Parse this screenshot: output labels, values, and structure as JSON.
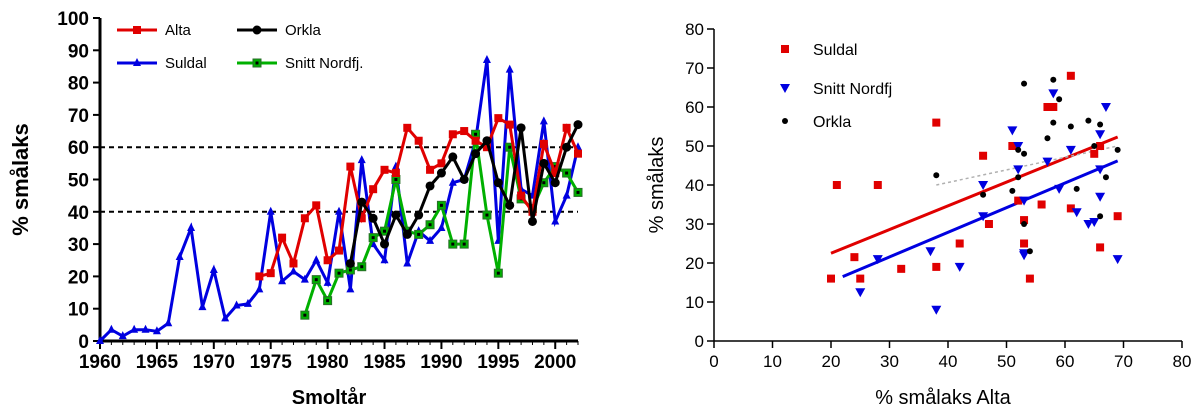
{
  "chart_data": [
    {
      "type": "line",
      "title": "",
      "xlabel": "Smoltår",
      "ylabel": "% smålaks",
      "xlim": [
        1960,
        2002
      ],
      "ylim": [
        0,
        100
      ],
      "xticks": [
        1960,
        1965,
        1970,
        1975,
        1980,
        1985,
        1990,
        1995,
        2000
      ],
      "yticks": [
        0,
        10,
        20,
        30,
        40,
        50,
        60,
        70,
        80,
        90,
        100
      ],
      "reference_lines": [
        40,
        60
      ],
      "legend_position": "top-left",
      "series": [
        {
          "name": "Alta",
          "color": "#e00000",
          "marker": "square",
          "points": [
            [
              1974,
              20
            ],
            [
              1975,
              21
            ],
            [
              1976,
              32
            ],
            [
              1977,
              24
            ],
            [
              1978,
              38
            ],
            [
              1979,
              42
            ],
            [
              1980,
              25
            ],
            [
              1981,
              28
            ],
            [
              1982,
              54
            ],
            [
              1983,
              38
            ],
            [
              1984,
              47
            ],
            [
              1985,
              53
            ],
            [
              1986,
              52
            ],
            [
              1987,
              66
            ],
            [
              1988,
              62
            ],
            [
              1989,
              53
            ],
            [
              1990,
              55
            ],
            [
              1991,
              64
            ],
            [
              1992,
              65
            ],
            [
              1993,
              62
            ],
            [
              1994,
              60
            ],
            [
              1995,
              69
            ],
            [
              1996,
              67
            ],
            [
              1997,
              45
            ],
            [
              1998,
              40
            ],
            [
              1999,
              61
            ],
            [
              2000,
              52
            ],
            [
              2001,
              66
            ],
            [
              2002,
              58
            ]
          ]
        },
        {
          "name": "Orkla",
          "color": "#000000",
          "marker": "circle",
          "points": [
            [
              1982,
              24
            ],
            [
              1983,
              43
            ],
            [
              1984,
              38
            ],
            [
              1985,
              30
            ],
            [
              1986,
              39
            ],
            [
              1987,
              33
            ],
            [
              1988,
              39
            ],
            [
              1989,
              48
            ],
            [
              1990,
              52
            ],
            [
              1991,
              57
            ],
            [
              1992,
              50
            ],
            [
              1993,
              58
            ],
            [
              1994,
              62
            ],
            [
              1995,
              49
            ],
            [
              1996,
              42
            ],
            [
              1997,
              66
            ],
            [
              1998,
              37
            ],
            [
              1999,
              55
            ],
            [
              2000,
              49
            ],
            [
              2001,
              60
            ],
            [
              2002,
              67
            ]
          ]
        },
        {
          "name": "Suldal",
          "color": "#0000e0",
          "marker": "triangle",
          "points": [
            [
              1960,
              0
            ],
            [
              1961,
              3.5
            ],
            [
              1962,
              1.5
            ],
            [
              1963,
              3.5
            ],
            [
              1964,
              3.5
            ],
            [
              1965,
              3
            ],
            [
              1966,
              5.5
            ],
            [
              1967,
              26
            ],
            [
              1968,
              35
            ],
            [
              1969,
              10.5
            ],
            [
              1970,
              22
            ],
            [
              1971,
              7
            ],
            [
              1972,
              11
            ],
            [
              1973,
              11.5
            ],
            [
              1974,
              16
            ],
            [
              1975,
              40
            ],
            [
              1976,
              18.5
            ],
            [
              1977,
              21.5
            ],
            [
              1978,
              19
            ],
            [
              1979,
              25
            ],
            [
              1980,
              18
            ],
            [
              1981,
              40
            ],
            [
              1982,
              16
            ],
            [
              1983,
              56
            ],
            [
              1984,
              30
            ],
            [
              1985,
              25
            ],
            [
              1986,
              54
            ],
            [
              1987,
              24
            ],
            [
              1988,
              34
            ],
            [
              1989,
              31
            ],
            [
              1990,
              35
            ],
            [
              1991,
              49
            ],
            [
              1992,
              50
            ],
            [
              1993,
              62
            ],
            [
              1994,
              87
            ],
            [
              1995,
              31
            ],
            [
              1996,
              84
            ],
            [
              1997,
              47
            ],
            [
              1998,
              45
            ],
            [
              1999,
              68
            ],
            [
              2000,
              37
            ],
            [
              2001,
              45
            ],
            [
              2002,
              60
            ]
          ]
        },
        {
          "name": "Snitt Nordfj.",
          "color": "#00b000",
          "marker": "square-dot",
          "points": [
            [
              1978,
              8
            ],
            [
              1979,
              19
            ],
            [
              1980,
              12.5
            ],
            [
              1981,
              21
            ],
            [
              1982,
              22
            ],
            [
              1983,
              23
            ],
            [
              1984,
              32
            ],
            [
              1985,
              34
            ],
            [
              1986,
              50
            ],
            [
              1987,
              34
            ],
            [
              1988,
              33
            ],
            [
              1989,
              36
            ],
            [
              1990,
              42
            ],
            [
              1991,
              30
            ],
            [
              1992,
              30
            ],
            [
              1993,
              64
            ],
            [
              1994,
              39
            ],
            [
              1995,
              21
            ],
            [
              1996,
              60
            ],
            [
              1997,
              44
            ],
            [
              1998,
              41
            ],
            [
              1999,
              49
            ],
            [
              2000,
              54
            ],
            [
              2001,
              52
            ],
            [
              2002,
              46
            ]
          ]
        }
      ]
    },
    {
      "type": "scatter",
      "title": "",
      "xlabel": "% smålaks Alta",
      "ylabel": "% smålaks",
      "xlim": [
        0,
        80
      ],
      "ylim": [
        0,
        80
      ],
      "xticks": [
        0,
        10,
        20,
        30,
        40,
        50,
        60,
        70,
        80
      ],
      "yticks": [
        0,
        10,
        20,
        30,
        40,
        50,
        60,
        70,
        80
      ],
      "legend_position": "top-left",
      "series": [
        {
          "name": "Suldal",
          "color": "#e00000",
          "marker": "square",
          "points": [
            [
              20,
              16
            ],
            [
              21,
              40
            ],
            [
              24,
              21.5
            ],
            [
              25,
              16
            ],
            [
              28,
              40
            ],
            [
              32,
              18.5
            ],
            [
              38,
              56
            ],
            [
              38,
              19
            ],
            [
              42,
              25
            ],
            [
              46,
              47.5
            ],
            [
              47,
              30
            ],
            [
              51,
              50
            ],
            [
              52,
              36
            ],
            [
              53,
              31
            ],
            [
              53,
              25
            ],
            [
              54,
              16
            ],
            [
              56,
              35
            ],
            [
              57,
              60
            ],
            [
              58,
              60
            ],
            [
              61,
              68
            ],
            [
              61,
              34
            ],
            [
              65,
              48
            ],
            [
              66,
              24
            ],
            [
              66,
              50
            ],
            [
              69,
              32
            ]
          ],
          "regression": [
            [
              20,
              22.5
            ],
            [
              69,
              52.3
            ]
          ]
        },
        {
          "name": "Snitt Nordfj",
          "color": "#0000e0",
          "marker": "triangle-down",
          "points": [
            [
              25,
              12.5
            ],
            [
              28,
              21
            ],
            [
              37,
              23
            ],
            [
              38,
              8
            ],
            [
              42,
              19
            ],
            [
              46,
              40
            ],
            [
              46,
              32
            ],
            [
              51,
              54
            ],
            [
              52,
              50
            ],
            [
              52,
              44
            ],
            [
              53,
              36
            ],
            [
              53,
              22.5
            ],
            [
              53,
              22
            ],
            [
              57,
              46
            ],
            [
              58,
              63.5
            ],
            [
              59,
              39
            ],
            [
              61,
              49
            ],
            [
              62,
              33
            ],
            [
              64,
              30
            ],
            [
              65,
              30.5
            ],
            [
              66,
              53
            ],
            [
              66,
              44
            ],
            [
              66,
              37
            ],
            [
              67,
              60
            ],
            [
              69,
              21
            ]
          ],
          "regression": [
            [
              22,
              16.5
            ],
            [
              69,
              46.2
            ]
          ]
        },
        {
          "name": "Orkla",
          "color": "#000000",
          "marker": "circle",
          "points": [
            [
              38,
              42.5
            ],
            [
              46,
              37.5
            ],
            [
              51,
              38.5
            ],
            [
              52,
              42
            ],
            [
              52,
              49
            ],
            [
              53,
              66
            ],
            [
              53,
              48
            ],
            [
              53,
              30
            ],
            [
              54,
              23
            ],
            [
              57,
              52
            ],
            [
              58,
              67
            ],
            [
              58,
              56
            ],
            [
              59,
              62
            ],
            [
              61,
              55
            ],
            [
              62,
              39
            ],
            [
              64,
              56.5
            ],
            [
              65,
              50
            ],
            [
              66,
              32
            ],
            [
              66,
              55.5
            ],
            [
              67,
              42
            ],
            [
              69,
              49
            ]
          ],
          "regression": [
            [
              38,
              40
            ],
            [
              69,
              50
            ]
          ]
        }
      ]
    }
  ]
}
